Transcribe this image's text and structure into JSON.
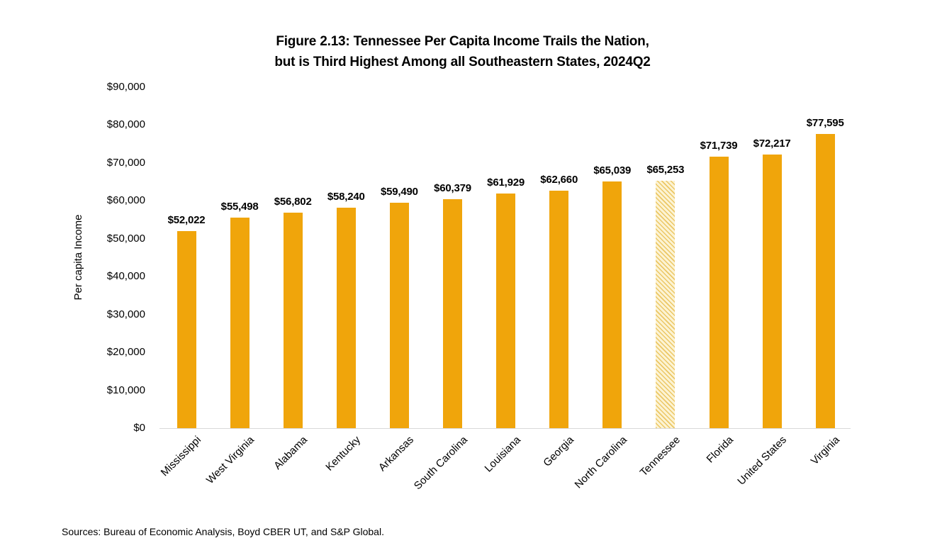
{
  "title": {
    "line1": "Figure 2.13: Tennessee Per Capita Income Trails the Nation,",
    "line2": "but is Third Highest Among all Southeastern States, 2024Q2"
  },
  "source": "Sources: Bureau of Economic Analysis, Boyd CBER UT, and S&P Global.",
  "chart_data": {
    "type": "bar",
    "title": "Figure 2.13: Tennessee Per Capita Income Trails the Nation, but is Third Highest Among all Southeastern States, 2024Q2",
    "xlabel": "",
    "ylabel": "Per capita Income",
    "ylim": [
      0,
      90000
    ],
    "ytick_interval": 10000,
    "ytick_labels": [
      "$0",
      "$10,000",
      "$20,000",
      "$30,000",
      "$40,000",
      "$50,000",
      "$60,000",
      "$70,000",
      "$80,000",
      "$90,000"
    ],
    "grid": false,
    "legend": "none",
    "categories": [
      "Mississippi",
      "West Virginia",
      "Alabama",
      "Kentucky",
      "Arkansas",
      "South Carolina",
      "Louisiana",
      "Georgia",
      "North Carolina",
      "Tennessee",
      "Florida",
      "United States",
      "Virginia"
    ],
    "values": [
      52022,
      55498,
      56802,
      58240,
      59490,
      60379,
      61929,
      62660,
      65039,
      65253,
      71739,
      72217,
      77595
    ],
    "value_labels": [
      "$52,022",
      "$55,498",
      "$56,802",
      "$58,240",
      "$59,490",
      "$60,379",
      "$61,929",
      "$62,660",
      "$65,039",
      "$65,253",
      "$71,739",
      "$72,217",
      "$77,595"
    ],
    "highlight_category": "Tennessee",
    "highlight_style": "diagonal-hatch",
    "colors": {
      "bar": "#F0A50B",
      "hatch_background": "#FCF3D3",
      "hatch_line": "#ECC765",
      "axis_line": "#D9D9D9",
      "text": "#000000"
    }
  }
}
